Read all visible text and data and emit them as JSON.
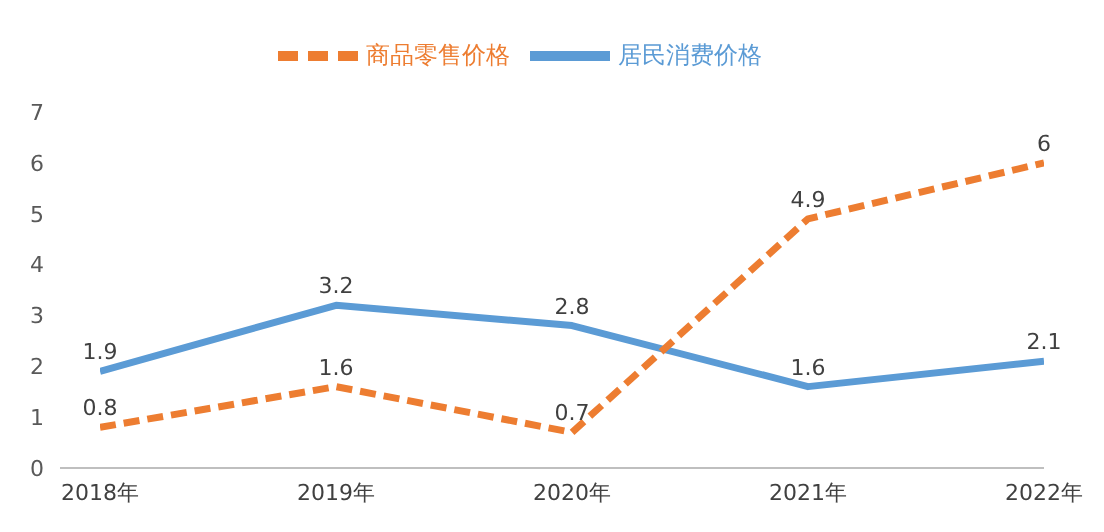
{
  "chart_data": {
    "type": "line",
    "categories": [
      "2018年",
      "2019年",
      "2020年",
      "2021年",
      "2022年"
    ],
    "series": [
      {
        "name": "居民消费价格",
        "color": "#5b9bd5",
        "values": [
          1.9,
          3.2,
          2.8,
          1.6,
          2.1
        ],
        "line_style": "solid"
      },
      {
        "name": "商品零售价格",
        "color": "#ed7d31",
        "values": [
          0.8,
          1.6,
          0.7,
          4.9,
          6
        ],
        "line_style": "dashed"
      }
    ],
    "ylim": [
      0,
      7
    ],
    "yticks": [
      0,
      1,
      2,
      3,
      4,
      5,
      6,
      7
    ],
    "grid": false,
    "legend": "top",
    "data_labels": true,
    "marker": "none"
  }
}
